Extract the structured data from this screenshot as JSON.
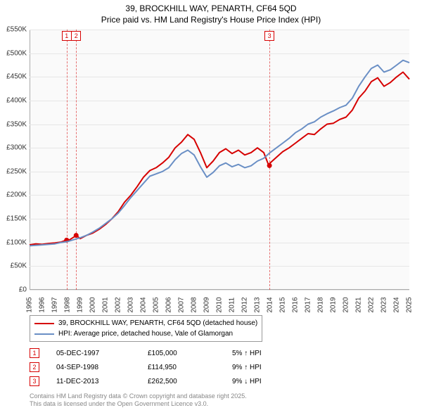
{
  "title": {
    "line1": "39, BROCKHILL WAY, PENARTH, CF64 5QD",
    "line2": "Price paid vs. HM Land Registry's House Price Index (HPI)"
  },
  "chart": {
    "type": "line",
    "background_color": "#fafafa",
    "grid_color": "#e6e6e6",
    "axis_color": "#aaaaaa",
    "text_color": "#333333",
    "y_prefix": "£",
    "y_suffix": "K",
    "ylim": [
      0,
      550
    ],
    "ytick_step": 50,
    "xlim": [
      1995,
      2025
    ],
    "xtick_step": 1,
    "label_fontsize": 10,
    "line_width": 2,
    "series": [
      {
        "id": "subject",
        "label": "39, BROCKHILL WAY, PENARTH, CF64 5QD (detached house)",
        "color": "#d60000",
        "points": [
          [
            1995.0,
            95
          ],
          [
            1995.5,
            97
          ],
          [
            1996.0,
            96
          ],
          [
            1996.5,
            98
          ],
          [
            1997.0,
            99
          ],
          [
            1997.5,
            101
          ],
          [
            1997.9,
            105
          ],
          [
            1998.0,
            103
          ],
          [
            1998.3,
            108
          ],
          [
            1998.7,
            114.95
          ],
          [
            1999.0,
            108
          ],
          [
            1999.5,
            115
          ],
          [
            2000.0,
            120
          ],
          [
            2000.5,
            128
          ],
          [
            2001.0,
            138
          ],
          [
            2001.5,
            150
          ],
          [
            2002.0,
            165
          ],
          [
            2002.5,
            185
          ],
          [
            2003.0,
            200
          ],
          [
            2003.5,
            218
          ],
          [
            2004.0,
            238
          ],
          [
            2004.5,
            252
          ],
          [
            2005.0,
            258
          ],
          [
            2005.5,
            268
          ],
          [
            2006.0,
            280
          ],
          [
            2006.5,
            300
          ],
          [
            2007.0,
            312
          ],
          [
            2007.5,
            328
          ],
          [
            2008.0,
            318
          ],
          [
            2008.5,
            290
          ],
          [
            2009.0,
            258
          ],
          [
            2009.5,
            272
          ],
          [
            2010.0,
            290
          ],
          [
            2010.5,
            298
          ],
          [
            2011.0,
            288
          ],
          [
            2011.5,
            295
          ],
          [
            2012.0,
            285
          ],
          [
            2012.5,
            290
          ],
          [
            2013.0,
            300
          ],
          [
            2013.5,
            290
          ],
          [
            2013.9,
            262.5
          ],
          [
            2014.0,
            268
          ],
          [
            2014.5,
            280
          ],
          [
            2015.0,
            292
          ],
          [
            2015.5,
            300
          ],
          [
            2016.0,
            310
          ],
          [
            2016.5,
            320
          ],
          [
            2017.0,
            330
          ],
          [
            2017.5,
            328
          ],
          [
            2018.0,
            340
          ],
          [
            2018.5,
            350
          ],
          [
            2019.0,
            352
          ],
          [
            2019.5,
            360
          ],
          [
            2020.0,
            365
          ],
          [
            2020.5,
            380
          ],
          [
            2021.0,
            405
          ],
          [
            2021.5,
            420
          ],
          [
            2022.0,
            440
          ],
          [
            2022.5,
            448
          ],
          [
            2023.0,
            430
          ],
          [
            2023.5,
            438
          ],
          [
            2024.0,
            450
          ],
          [
            2024.5,
            460
          ],
          [
            2025.0,
            445
          ]
        ],
        "markers": [
          {
            "x": 1997.93,
            "y": 105
          },
          {
            "x": 1998.68,
            "y": 114.95
          },
          {
            "x": 2013.95,
            "y": 262.5
          }
        ]
      },
      {
        "id": "hpi",
        "label": "HPI: Average price, detached house, Vale of Glamorgan",
        "color": "#6a8fc5",
        "points": [
          [
            1995.0,
            93
          ],
          [
            1995.5,
            94
          ],
          [
            1996.0,
            95
          ],
          [
            1996.5,
            96
          ],
          [
            1997.0,
            97
          ],
          [
            1997.5,
            100
          ],
          [
            1998.0,
            102
          ],
          [
            1998.5,
            106
          ],
          [
            1999.0,
            110
          ],
          [
            1999.5,
            115
          ],
          [
            2000.0,
            122
          ],
          [
            2000.5,
            130
          ],
          [
            2001.0,
            140
          ],
          [
            2001.5,
            150
          ],
          [
            2002.0,
            162
          ],
          [
            2002.5,
            178
          ],
          [
            2003.0,
            195
          ],
          [
            2003.5,
            210
          ],
          [
            2004.0,
            225
          ],
          [
            2004.5,
            240
          ],
          [
            2005.0,
            245
          ],
          [
            2005.5,
            250
          ],
          [
            2006.0,
            258
          ],
          [
            2006.5,
            275
          ],
          [
            2007.0,
            288
          ],
          [
            2007.5,
            295
          ],
          [
            2008.0,
            285
          ],
          [
            2008.5,
            260
          ],
          [
            2009.0,
            238
          ],
          [
            2009.5,
            248
          ],
          [
            2010.0,
            262
          ],
          [
            2010.5,
            268
          ],
          [
            2011.0,
            260
          ],
          [
            2011.5,
            265
          ],
          [
            2012.0,
            258
          ],
          [
            2012.5,
            262
          ],
          [
            2013.0,
            272
          ],
          [
            2013.5,
            278
          ],
          [
            2014.0,
            290
          ],
          [
            2014.5,
            300
          ],
          [
            2015.0,
            310
          ],
          [
            2015.5,
            320
          ],
          [
            2016.0,
            332
          ],
          [
            2016.5,
            340
          ],
          [
            2017.0,
            350
          ],
          [
            2017.5,
            355
          ],
          [
            2018.0,
            365
          ],
          [
            2018.5,
            372
          ],
          [
            2019.0,
            378
          ],
          [
            2019.5,
            385
          ],
          [
            2020.0,
            390
          ],
          [
            2020.5,
            405
          ],
          [
            2021.0,
            430
          ],
          [
            2021.5,
            450
          ],
          [
            2022.0,
            468
          ],
          [
            2022.5,
            475
          ],
          [
            2023.0,
            460
          ],
          [
            2023.5,
            465
          ],
          [
            2024.0,
            475
          ],
          [
            2024.5,
            485
          ],
          [
            2025.0,
            480
          ]
        ]
      }
    ]
  },
  "transaction_markers": [
    {
      "num": "1",
      "x": 1997.93,
      "color": "#d60000"
    },
    {
      "num": "2",
      "x": 1998.68,
      "color": "#d60000"
    },
    {
      "num": "3",
      "x": 2013.95,
      "color": "#d60000"
    }
  ],
  "legend": {
    "border_color": "#999999",
    "items": [
      {
        "color": "#d60000",
        "label": "39, BROCKHILL WAY, PENARTH, CF64 5QD (detached house)"
      },
      {
        "color": "#6a8fc5",
        "label": "HPI: Average price, detached house, Vale of Glamorgan"
      }
    ]
  },
  "events": [
    {
      "num": "1",
      "color": "#d60000",
      "date": "05-DEC-1997",
      "price": "£105,000",
      "pct": "5% ↑ HPI"
    },
    {
      "num": "2",
      "color": "#d60000",
      "date": "04-SEP-1998",
      "price": "£114,950",
      "pct": "9% ↑ HPI"
    },
    {
      "num": "3",
      "color": "#d60000",
      "date": "11-DEC-2013",
      "price": "£262,500",
      "pct": "9% ↓ HPI"
    }
  ],
  "footer": {
    "line1": "Contains HM Land Registry data © Crown copyright and database right 2025.",
    "line2": "This data is licensed under the Open Government Licence v3.0."
  }
}
